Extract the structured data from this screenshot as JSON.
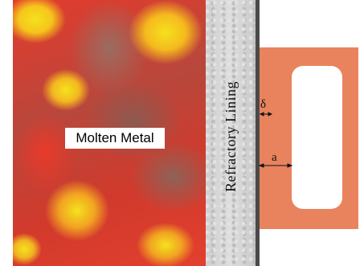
{
  "diagram": {
    "molten_metal_label": "Molten Metal",
    "lining_label": "Refractory Lining",
    "delta_symbol": "δ",
    "a_symbol": "a"
  },
  "colors": {
    "molten_red": "#e43b2c",
    "molten_yellow": "#f4e21c",
    "lining_gray": "#d2d2d2",
    "shell_dark": "#4a4a4a",
    "coil_copper": "#e8835e"
  }
}
